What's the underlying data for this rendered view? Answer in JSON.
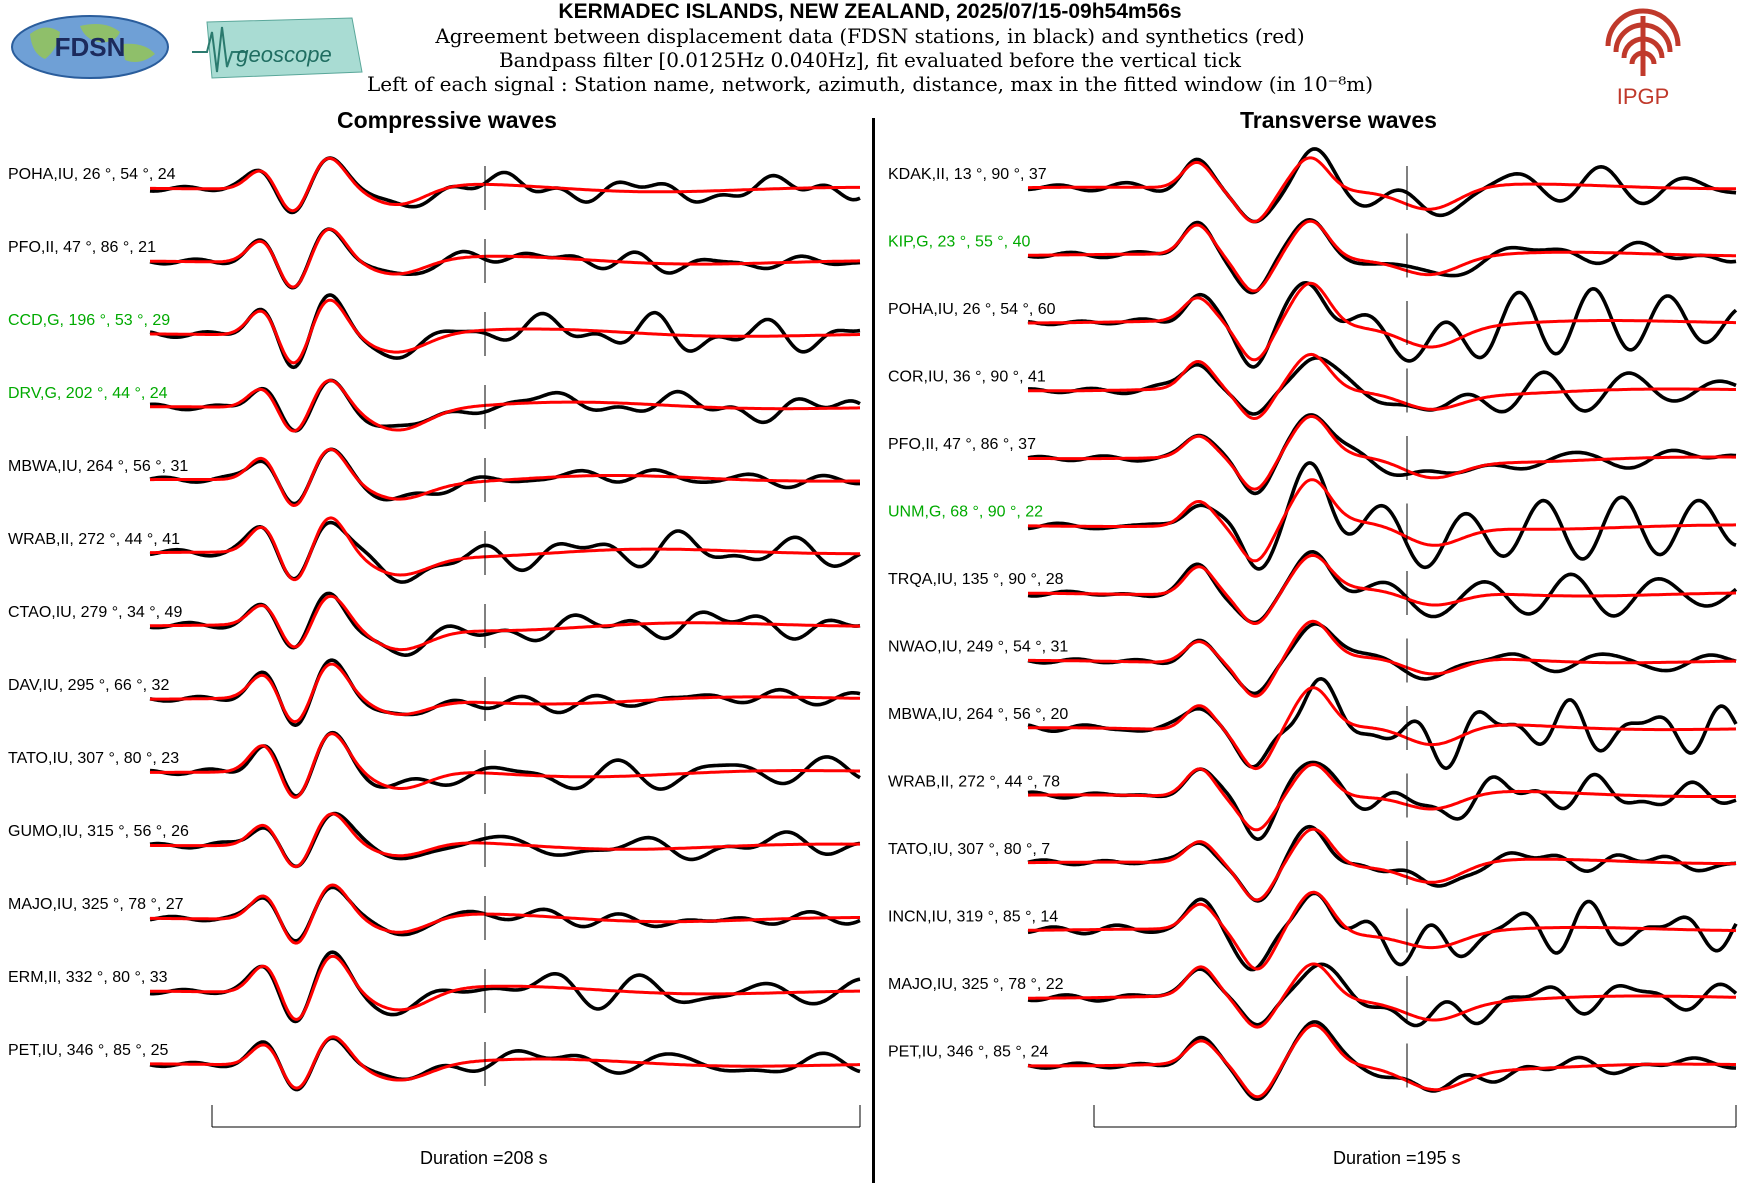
{
  "header": {
    "title": "KERMADEC ISLANDS, NEW ZEALAND, 2025/07/15-09h54m56s",
    "line1": "Agreement between displacement data (FDSN stations, in black) and synthetics (red)",
    "line2": "Bandpass filter [0.0125Hz 0.040Hz], fit evaluated before the vertical tick",
    "line3": "Left of each signal : Station name, network, azimuth, distance, max in the fitted window (in 10⁻⁸m)",
    "logo_fdsn": "FDSN",
    "logo_geoscope": "geoscope",
    "logo_ipgp": "IPGP"
  },
  "colors": {
    "data": "#000000",
    "synthetic": "#ff0000",
    "highlight_label": "#00aa00",
    "normal_label": "#000000",
    "ipgp": "#c0392b"
  },
  "chart_data": [
    {
      "type": "line",
      "title": "Compressive waves",
      "duration_label": "Duration =208 s",
      "series_legend": [
        "data (black)",
        "synthetics (red)"
      ],
      "stations": [
        {
          "label": "POHA,IU, 26 °, 54 °, 24",
          "highlight": false
        },
        {
          "label": "PFO,II, 47 °, 86 °, 21",
          "highlight": false
        },
        {
          "label": "CCD,G, 196 °, 53 °, 29",
          "highlight": true
        },
        {
          "label": "DRV,G, 202 °, 44 °, 24",
          "highlight": true
        },
        {
          "label": "MBWA,IU, 264 °, 56 °, 31",
          "highlight": false
        },
        {
          "label": "WRAB,II, 272 °, 44 °, 41",
          "highlight": false
        },
        {
          "label": "CTAO,IU, 279 °, 34 °, 49",
          "highlight": false
        },
        {
          "label": "DAV,IU, 295 °, 66 °, 32",
          "highlight": false
        },
        {
          "label": "TATO,IU, 307 °, 80 °, 23",
          "highlight": false
        },
        {
          "label": "GUMO,IU, 315 °, 56 °, 26",
          "highlight": false
        },
        {
          "label": "MAJO,IU, 325 °, 78 °, 27",
          "highlight": false
        },
        {
          "label": "ERM,II, 332 °, 80 °, 33",
          "highlight": false
        },
        {
          "label": "PET,IU, 346 °, 85 °, 25",
          "highlight": false
        }
      ]
    },
    {
      "type": "line",
      "title": "Transverse waves",
      "duration_label": "Duration =195 s",
      "series_legend": [
        "data (black)",
        "synthetics (red)"
      ],
      "stations": [
        {
          "label": "KDAK,II, 13 °, 90 °, 37",
          "highlight": false
        },
        {
          "label": "KIP,G, 23 °, 55 °, 40",
          "highlight": true
        },
        {
          "label": "POHA,IU, 26 °, 54 °, 60",
          "highlight": false
        },
        {
          "label": "COR,IU, 36 °, 90 °, 41",
          "highlight": false
        },
        {
          "label": "PFO,II, 47 °, 86 °, 37",
          "highlight": false
        },
        {
          "label": "UNM,G, 68 °, 90 °, 22",
          "highlight": true
        },
        {
          "label": "TRQA,IU, 135 °, 90 °, 28",
          "highlight": false
        },
        {
          "label": "NWAO,IU, 249 °, 54 °, 31",
          "highlight": false
        },
        {
          "label": "MBWA,IU, 264 °, 56 °, 20",
          "highlight": false
        },
        {
          "label": "WRAB,II, 272 °, 44 °, 78",
          "highlight": false
        },
        {
          "label": "TATO,IU, 307 °, 80 °, 7",
          "highlight": false
        },
        {
          "label": "INCN,IU, 319 °, 85 °, 14",
          "highlight": false
        },
        {
          "label": "MAJO,IU, 325 °, 78 °, 22",
          "highlight": false
        },
        {
          "label": "PET,IU, 346 °, 85 °, 24",
          "highlight": false
        }
      ]
    }
  ]
}
